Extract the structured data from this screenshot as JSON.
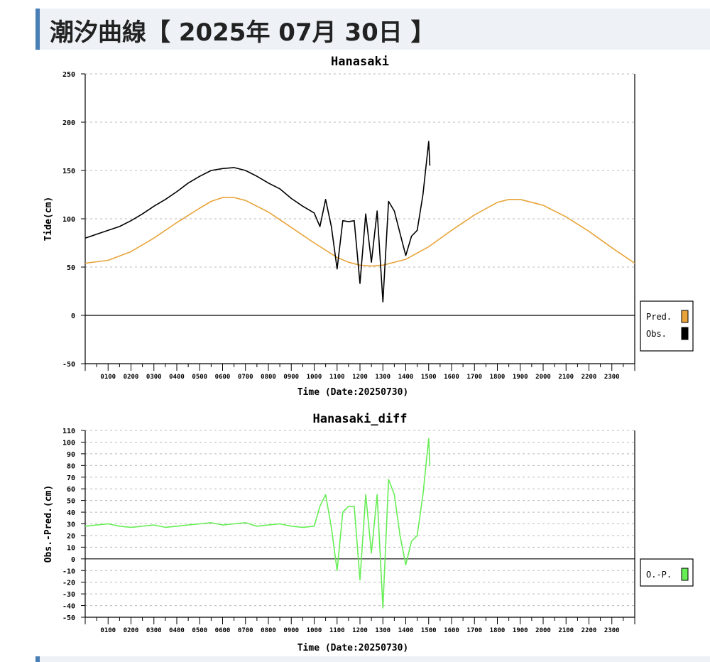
{
  "page": {
    "title": "潮汐曲線【 2025年 07月 30日 】"
  },
  "colors": {
    "pred": "#e8a43a",
    "obs": "#000000",
    "diff": "#66ee55",
    "grid": "#b8b8b8",
    "accent": "#4a7fb5"
  },
  "chart_data": [
    {
      "type": "line",
      "title": "Hanasaki",
      "xlabel": "Time (Date:20250730)",
      "ylabel": "Tide(cm)",
      "xlim": [
        0,
        24
      ],
      "ylim": [
        -50,
        250
      ],
      "y_ticks": [
        -50,
        0,
        50,
        100,
        150,
        200,
        250
      ],
      "x_tick_labels": [
        "0100",
        "0200",
        "0300",
        "0400",
        "0500",
        "0600",
        "0700",
        "0800",
        "0900",
        "1000",
        "1100",
        "1200",
        "1300",
        "1400",
        "1500",
        "1600",
        "1700",
        "1800",
        "1900",
        "2000",
        "2100",
        "2200",
        "2300"
      ],
      "grid": "horizontal dashed",
      "legend": {
        "position": "right",
        "entries": [
          "Pred.",
          "Obs."
        ]
      },
      "series": [
        {
          "name": "Pred.",
          "color": "#e8a43a",
          "x": [
            0,
            1,
            2,
            3,
            4,
            5,
            5.5,
            6,
            6.5,
            7,
            8,
            9,
            10,
            11,
            11.5,
            12,
            12.5,
            13,
            14,
            15,
            16,
            17,
            18,
            18.5,
            19,
            20,
            21,
            22,
            23,
            24
          ],
          "y": [
            54,
            57,
            66,
            80,
            96,
            111,
            118,
            122,
            122,
            119,
            107,
            91,
            75,
            60,
            55,
            52,
            51,
            52,
            58,
            71,
            88,
            104,
            117,
            120,
            120,
            114,
            102,
            87,
            70,
            54
          ]
        },
        {
          "name": "Obs.",
          "color": "#000000",
          "x": [
            0,
            0.5,
            1,
            1.5,
            2,
            2.5,
            3,
            3.5,
            4,
            4.5,
            5,
            5.5,
            6,
            6.5,
            7,
            7.5,
            8,
            8.5,
            9,
            9.5,
            10,
            10.25,
            10.5,
            10.75,
            11,
            11.25,
            11.5,
            11.75,
            12,
            12.25,
            12.5,
            12.75,
            13,
            13.25,
            13.5,
            13.75,
            14,
            14.25,
            14.5,
            14.75,
            15,
            15.05
          ],
          "y": [
            80,
            84,
            88,
            92,
            98,
            105,
            113,
            120,
            128,
            137,
            144,
            150,
            152,
            153,
            150,
            144,
            137,
            131,
            121,
            113,
            106,
            92,
            120,
            92,
            48,
            98,
            97,
            98,
            33,
            105,
            55,
            108,
            14,
            118,
            108,
            85,
            62,
            82,
            88,
            125,
            180,
            155
          ]
        }
      ]
    },
    {
      "type": "line",
      "title": "Hanasaki_diff",
      "xlabel": "Time (Date:20250730)",
      "ylabel": "Obs.-Pred.(cm)",
      "xlim": [
        0,
        24
      ],
      "ylim": [
        -50,
        110
      ],
      "y_ticks": [
        -50,
        -40,
        -30,
        -20,
        -10,
        0,
        10,
        20,
        30,
        40,
        50,
        60,
        70,
        80,
        90,
        100,
        110
      ],
      "x_tick_labels": [
        "0100",
        "0200",
        "0300",
        "0400",
        "0500",
        "0600",
        "0700",
        "0800",
        "0900",
        "1000",
        "1100",
        "1200",
        "1300",
        "1400",
        "1500",
        "1600",
        "1700",
        "1800",
        "1900",
        "2000",
        "2100",
        "2200",
        "2300"
      ],
      "grid": "horizontal dashed",
      "legend": {
        "position": "right",
        "entries": [
          "O.-P."
        ]
      },
      "series": [
        {
          "name": "O.-P.",
          "color": "#66ee55",
          "x": [
            0,
            0.5,
            1,
            1.5,
            2,
            2.5,
            3,
            3.5,
            4,
            4.5,
            5,
            5.5,
            6,
            6.5,
            7,
            7.5,
            8,
            8.5,
            9,
            9.5,
            10,
            10.25,
            10.5,
            10.75,
            11,
            11.25,
            11.5,
            11.75,
            12,
            12.25,
            12.5,
            12.75,
            13,
            13.25,
            13.5,
            13.75,
            14,
            14.25,
            14.5,
            14.75,
            15,
            15.05
          ],
          "y": [
            28,
            29,
            30,
            28,
            27,
            28,
            29,
            27,
            28,
            29,
            30,
            31,
            29,
            30,
            31,
            28,
            29,
            30,
            28,
            27,
            28,
            45,
            55,
            27,
            -10,
            40,
            45,
            45,
            -18,
            55,
            5,
            55,
            -42,
            68,
            55,
            20,
            -5,
            15,
            20,
            55,
            103,
            80
          ]
        }
      ]
    }
  ]
}
